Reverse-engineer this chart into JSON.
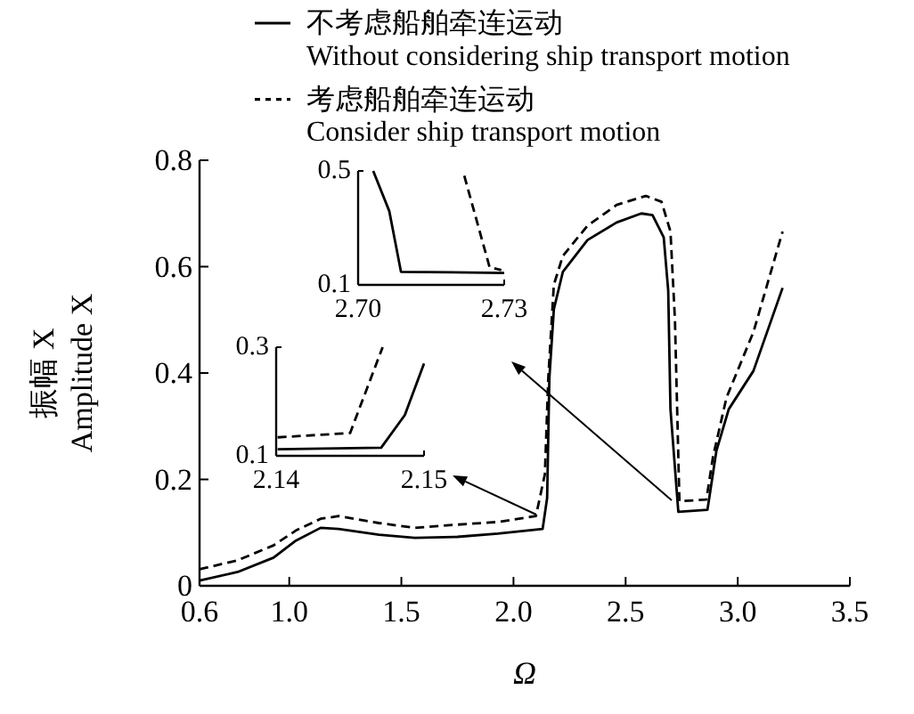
{
  "chart_data": [
    {
      "type": "line",
      "xlabel": "Ω",
      "ylabel": "振幅 X\nAmplitude X",
      "xlim": [
        0.6,
        3.5
      ],
      "xticks": [
        0.6,
        {
          "value": 1,
          "label": "1.0"
        },
        1.5,
        {
          "value": 2,
          "label": "2.0"
        },
        2.5,
        {
          "value": 3,
          "label": "3.0"
        },
        3.5
      ],
      "ylim": [
        0,
        0.8
      ],
      "yticks": [
        0,
        0.2,
        0.4,
        0.6,
        0.8
      ],
      "legend": "top",
      "grid": false,
      "series": [
        {
          "name": "不考虑船舶牵连运动\nWithout considering ship transport motion",
          "color": "#000000",
          "line_style": "solid",
          "x": [
            0.6,
            0.77,
            0.93,
            1.03,
            1.14,
            1.22,
            1.4,
            1.56,
            1.75,
            1.93,
            2.13,
            2.15,
            2.16,
            2.18,
            2.22,
            2.33,
            2.46,
            2.57,
            2.62,
            2.67,
            2.69,
            2.7,
            2.735,
            2.865,
            2.905,
            2.96,
            3.07,
            3.2
          ],
          "values": [
            0.01,
            0.026,
            0.053,
            0.085,
            0.109,
            0.107,
            0.096,
            0.09,
            0.092,
            0.098,
            0.107,
            0.165,
            0.39,
            0.52,
            0.59,
            0.65,
            0.683,
            0.7,
            0.697,
            0.655,
            0.555,
            0.332,
            0.139,
            0.143,
            0.254,
            0.332,
            0.404,
            0.56
          ]
        },
        {
          "name": "考虑船舶牵连运动\nConsider ship transport motion",
          "color": "#000000",
          "line_style": "dashed",
          "x": [
            0.6,
            0.77,
            0.93,
            1.03,
            1.14,
            1.22,
            1.4,
            1.56,
            1.75,
            1.93,
            2.1,
            2.14,
            2.155,
            2.18,
            2.22,
            2.33,
            2.46,
            2.59,
            2.66,
            2.7,
            2.72,
            2.74,
            2.86,
            2.89,
            2.95,
            3.07,
            3.2
          ],
          "values": [
            0.031,
            0.048,
            0.076,
            0.104,
            0.126,
            0.131,
            0.118,
            0.109,
            0.115,
            0.12,
            0.131,
            0.21,
            0.39,
            0.566,
            0.62,
            0.677,
            0.716,
            0.733,
            0.722,
            0.666,
            0.5,
            0.159,
            0.162,
            0.243,
            0.354,
            0.477,
            0.666
          ]
        }
      ]
    },
    {
      "type": "line",
      "xlim": [
        2.7,
        2.73
      ],
      "xticks": [
        {
          "value": 2.7,
          "label": "2.70"
        },
        2.73
      ],
      "ylim": [
        0.1,
        0.5
      ],
      "yticks": [
        0.1,
        0.5
      ],
      "grid": false,
      "series": [
        {
          "color": "#000000",
          "line_style": "solid",
          "x": [
            2.7031,
            2.7064,
            2.7088,
            2.73
          ],
          "values": [
            0.5,
            0.359,
            0.146,
            0.142
          ]
        },
        {
          "color": "#000000",
          "line_style": "dashed",
          "x": [
            2.7218,
            2.727,
            2.7294
          ],
          "values": [
            0.483,
            0.162,
            0.152
          ]
        }
      ]
    },
    {
      "type": "line",
      "xlim": [
        2.14,
        2.15
      ],
      "xticks": [
        2.14,
        2.15
      ],
      "ylim": [
        0.1,
        0.3
      ],
      "yticks": [
        0.1,
        0.3
      ],
      "grid": false,
      "series": [
        {
          "color": "#000000",
          "line_style": "solid",
          "x": [
            2.1401,
            2.1471,
            2.1487,
            2.15
          ],
          "values": [
            0.112,
            0.115,
            0.175,
            0.27
          ]
        },
        {
          "color": "#000000",
          "line_style": "dashed",
          "x": [
            2.1401,
            2.145,
            2.1472
          ],
          "values": [
            0.134,
            0.142,
            0.3
          ]
        }
      ]
    }
  ]
}
